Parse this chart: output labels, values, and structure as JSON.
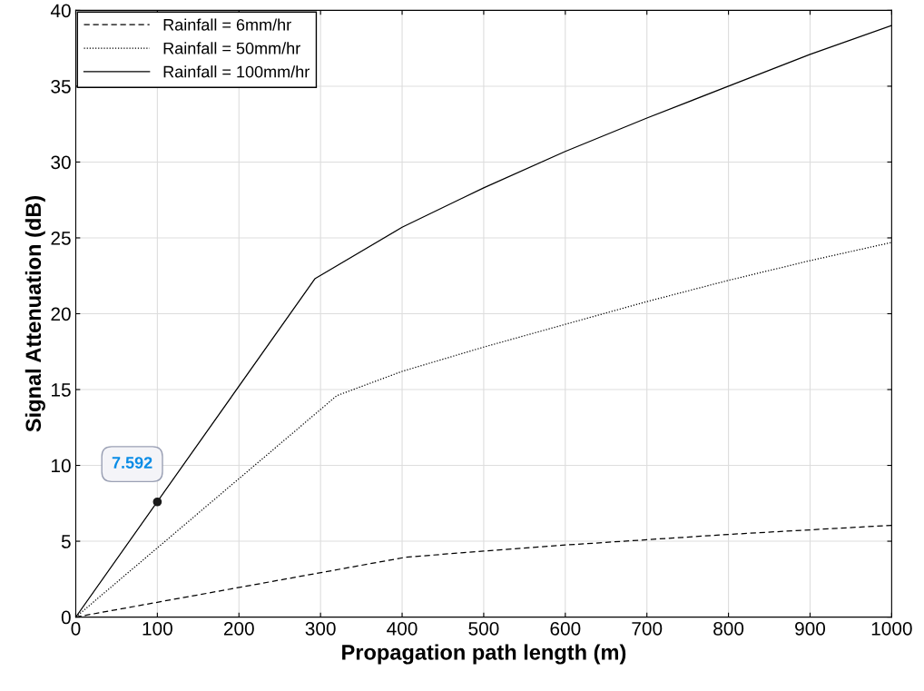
{
  "chart_data": {
    "type": "line",
    "xlabel": "Propagation path length (m)",
    "ylabel": "Signal Attenuation (dB)",
    "xlim": [
      0,
      1000
    ],
    "xticks": [
      0,
      100,
      200,
      300,
      400,
      500,
      600,
      700,
      800,
      900,
      1000
    ],
    "ylim": [
      0,
      40
    ],
    "yticks": [
      0,
      5,
      10,
      15,
      20,
      25,
      30,
      35,
      40
    ],
    "grid": true,
    "legend": "top left",
    "series": [
      {
        "name": "Rainfall = 6mm/hr",
        "color": "#000000",
        "line_style": "dashed",
        "x": [
          0,
          405,
          500,
          600,
          700,
          800,
          900,
          1000
        ],
        "values": [
          0,
          3.95,
          4.35,
          4.75,
          5.1,
          5.45,
          5.75,
          6.05
        ]
      },
      {
        "name": "Rainfall = 50mm/hr",
        "color": "#000000",
        "line_style": "dotted",
        "x": [
          0,
          320,
          400,
          500,
          600,
          700,
          800,
          900,
          1000
        ],
        "values": [
          0,
          14.6,
          16.2,
          17.8,
          19.3,
          20.8,
          22.2,
          23.5,
          24.7
        ]
      },
      {
        "name": "Rainfall = 100mm/hr",
        "color": "#000000",
        "line_style": "solid",
        "x": [
          0,
          293,
          400,
          500,
          600,
          700,
          800,
          900,
          1000
        ],
        "values": [
          0,
          22.3,
          25.7,
          28.3,
          30.7,
          32.9,
          35.0,
          37.1,
          39.0
        ]
      }
    ],
    "annotations": [
      {
        "text": "7.592",
        "x": 100,
        "y": 7.592
      }
    ]
  }
}
